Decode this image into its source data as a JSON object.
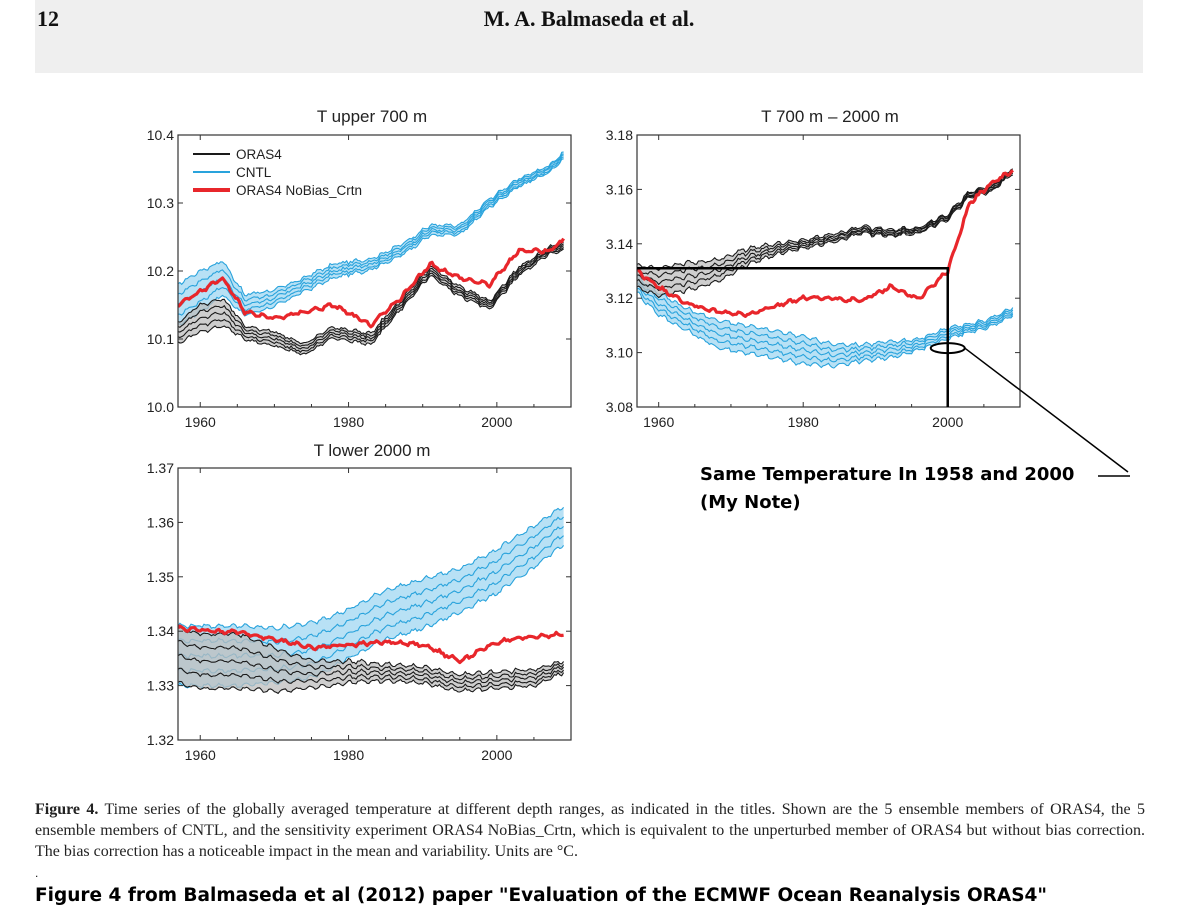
{
  "header": {
    "page_number": "12",
    "authors": "M. A. Balmaseda et al."
  },
  "colors": {
    "orasa4": "#1a1a1a",
    "cntl": "#29a3dc",
    "cntl_fill": "#a6daf2",
    "orasa4_fill": "#bdbdbd",
    "nobias": "#e8262b"
  },
  "legend": {
    "items": [
      "ORAS4",
      "CNTL",
      "ORAS4 NoBias_Crtn"
    ]
  },
  "annotation": {
    "line1": "Same Temperature In 1958 and 2000",
    "line2": "(My Note)"
  },
  "caption": {
    "label": "Figure 4.",
    "text": "Time series of the globally averaged temperature at different depth ranges, as indicated in the titles. Shown are the 5 ensemble members of ORAS4, the 5 ensemble members of CNTL, and the sensitivity experiment ORAS4 NoBias_Crtn, which is equivalent to the unperturbed member of ORAS4 but without bias correction. The bias correction has a noticeable impact in the mean and variability. Units are °C."
  },
  "footer": {
    "dot": ".",
    "source": "Figure 4 from Balmaseda et al (2012) paper \"Evaluation of the ECMWF Ocean Reanalysis ORAS4\""
  },
  "chart_data": [
    {
      "type": "line",
      "title": "T upper 700 m",
      "xlim": [
        1957,
        2010
      ],
      "ylim": [
        10.0,
        10.4
      ],
      "xticks": [
        1960,
        1980,
        2000
      ],
      "yticks": [
        10.0,
        10.1,
        10.2,
        10.3,
        10.4
      ],
      "ytick_labels": [
        "10.0",
        "10.1",
        "10.2",
        "10.3",
        "10.4"
      ],
      "x": [
        1957,
        1960,
        1963,
        1966,
        1970,
        1974,
        1978,
        1983,
        1987,
        1991,
        1995,
        1999,
        2003,
        2007,
        2009
      ],
      "series": [
        {
          "name": "ORAS4",
          "mean": [
            10.11,
            10.13,
            10.14,
            10.11,
            10.1,
            10.085,
            10.11,
            10.1,
            10.15,
            10.2,
            10.17,
            10.15,
            10.2,
            10.23,
            10.235
          ],
          "spread": [
            0.015,
            0.02,
            0.02,
            0.01,
            0.01,
            0.008,
            0.008,
            0.008,
            0.007,
            0.007,
            0.007,
            0.006,
            0.006,
            0.005,
            0.005
          ]
        },
        {
          "name": "CNTL",
          "mean": [
            10.15,
            10.17,
            10.19,
            10.15,
            10.16,
            10.18,
            10.2,
            10.21,
            10.23,
            10.26,
            10.26,
            10.3,
            10.33,
            10.35,
            10.37
          ],
          "spread": [
            0.03,
            0.03,
            0.025,
            0.015,
            0.012,
            0.01,
            0.01,
            0.008,
            0.008,
            0.007,
            0.007,
            0.006,
            0.006,
            0.005,
            0.005
          ]
        },
        {
          "name": "ORAS4 NoBias_Crtn",
          "values": [
            10.15,
            10.17,
            10.19,
            10.14,
            10.13,
            10.14,
            10.15,
            10.12,
            10.16,
            10.21,
            10.19,
            10.18,
            10.23,
            10.23,
            10.245
          ]
        }
      ]
    },
    {
      "type": "line",
      "title": "T 700 m – 2000 m",
      "xlim": [
        1957,
        2010
      ],
      "ylim": [
        3.08,
        3.18
      ],
      "xticks": [
        1960,
        1980,
        2000
      ],
      "yticks": [
        3.08,
        3.1,
        3.12,
        3.14,
        3.16,
        3.18
      ],
      "ytick_labels": [
        "3.08",
        "3.10",
        "3.12",
        "3.14",
        "3.16",
        "3.18"
      ],
      "x": [
        1957,
        1960,
        1964,
        1968,
        1972,
        1976,
        1980,
        1984,
        1988,
        1992,
        1996,
        2000,
        2003,
        2006,
        2009
      ],
      "series": [
        {
          "name": "ORAS4",
          "mean": [
            3.128,
            3.126,
            3.128,
            3.13,
            3.135,
            3.138,
            3.14,
            3.142,
            3.145,
            3.144,
            3.145,
            3.15,
            3.158,
            3.16,
            3.167
          ],
          "spread": [
            0.004,
            0.005,
            0.005,
            0.004,
            0.003,
            0.002,
            0.0015,
            0.0015,
            0.0012,
            0.0012,
            0.001,
            0.001,
            0.001,
            0.001,
            0.001
          ]
        },
        {
          "name": "CNTL",
          "mean": [
            3.125,
            3.118,
            3.112,
            3.107,
            3.105,
            3.103,
            3.101,
            3.099,
            3.1,
            3.101,
            3.103,
            3.107,
            3.109,
            3.111,
            3.115
          ],
          "spread": [
            0.003,
            0.004,
            0.004,
            0.005,
            0.005,
            0.005,
            0.005,
            0.004,
            0.003,
            0.003,
            0.002,
            0.002,
            0.0015,
            0.0015,
            0.0015
          ]
        },
        {
          "name": "ORAS4 NoBias_Crtn",
          "values": [
            3.13,
            3.124,
            3.118,
            3.115,
            3.114,
            3.117,
            3.12,
            3.12,
            3.119,
            3.124,
            3.12,
            3.13,
            3.155,
            3.162,
            3.167
          ]
        }
      ]
    },
    {
      "type": "line",
      "title": "T lower 2000 m",
      "xlim": [
        1957,
        2010
      ],
      "ylim": [
        1.32,
        1.37
      ],
      "xticks": [
        1960,
        1980,
        2000
      ],
      "yticks": [
        1.32,
        1.33,
        1.34,
        1.35,
        1.36,
        1.37
      ],
      "ytick_labels": [
        "1.32",
        "1.33",
        "1.34",
        "1.35",
        "1.36",
        "1.37"
      ],
      "x": [
        1957,
        1960,
        1965,
        1970,
        1975,
        1980,
        1985,
        1990,
        1995,
        2000,
        2005,
        2009
      ],
      "series": [
        {
          "name": "ORAS4",
          "mean": [
            1.3355,
            1.3345,
            1.3345,
            1.333,
            1.332,
            1.3325,
            1.3325,
            1.332,
            1.3305,
            1.331,
            1.3315,
            1.3335
          ],
          "spread": [
            0.005,
            0.005,
            0.005,
            0.004,
            0.0025,
            0.002,
            0.0015,
            0.0015,
            0.0015,
            0.0015,
            0.0015,
            0.001
          ]
        },
        {
          "name": "CNTL",
          "mean": [
            1.3355,
            1.3355,
            1.3355,
            1.3355,
            1.3365,
            1.3395,
            1.343,
            1.345,
            1.3475,
            1.351,
            1.3555,
            1.3595
          ],
          "spread": [
            0.0055,
            0.0055,
            0.0055,
            0.005,
            0.005,
            0.0045,
            0.0045,
            0.0045,
            0.004,
            0.004,
            0.0038,
            0.0035
          ]
        },
        {
          "name": "ORAS4 NoBias_Crtn",
          "values": [
            1.3405,
            1.3402,
            1.3398,
            1.3385,
            1.337,
            1.3375,
            1.338,
            1.3375,
            1.3345,
            1.338,
            1.339,
            1.3395
          ]
        }
      ]
    }
  ]
}
